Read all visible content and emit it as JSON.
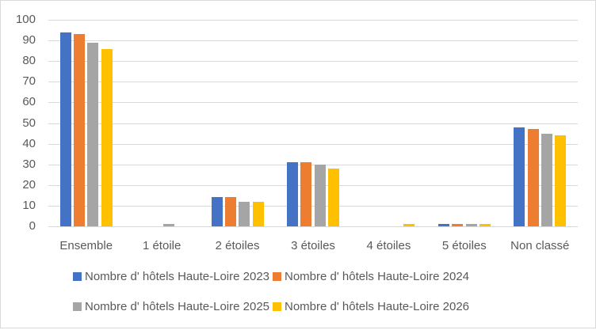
{
  "chart_data": {
    "type": "bar",
    "title": "",
    "xlabel": "",
    "ylabel": "",
    "ylim": [
      0,
      100
    ],
    "yticks": [
      0,
      10,
      20,
      30,
      40,
      50,
      60,
      70,
      80,
      90,
      100
    ],
    "grid": true,
    "legend_position": "bottom",
    "categories": [
      "Ensemble",
      "1 étoile",
      "2 étoiles",
      "3 étoiles",
      "4 étoiles",
      "5 étoiles",
      "Non classé"
    ],
    "series": [
      {
        "name": "Nombre d' hôtels Haute-Loire 2023",
        "color": "#4472c4",
        "values": [
          94,
          0,
          14,
          31,
          0,
          1,
          48
        ]
      },
      {
        "name": "Nombre d' hôtels Haute-Loire 2024",
        "color": "#ed7d31",
        "values": [
          93,
          0,
          14,
          31,
          0,
          1,
          47
        ]
      },
      {
        "name": "Nombre d' hôtels Haute-Loire 2025",
        "color": "#a5a5a5",
        "values": [
          89,
          1,
          12,
          30,
          0,
          1,
          45
        ]
      },
      {
        "name": "Nombre d' hôtels Haute-Loire 2026",
        "color": "#ffc000",
        "values": [
          86,
          0,
          12,
          28,
          1,
          1,
          44
        ]
      }
    ]
  }
}
